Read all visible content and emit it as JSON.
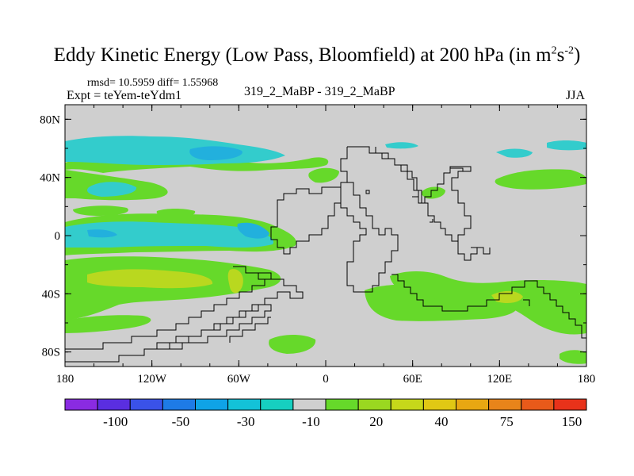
{
  "title": "Eddy Kinetic Energy (Low Pass, Bloomfield) at 200 hPa (in m",
  "title_sup1": "2",
  "title_mid": "s",
  "title_sup2": "-2",
  "title_end": ")",
  "rmsd_text": "rmsd= 10.5959 diff= 1.55968",
  "expt_text": "Expt = teYem-teYdm1",
  "center_label": "319_2_MaBP - 319_2_MaBP",
  "season": "JJA",
  "colors": {
    "background_field": "#cfcfcf",
    "green": "#66d92a",
    "yellow_green": "#b9d81f",
    "cyan": "#33cccc",
    "light_blue": "#22b0dd"
  },
  "chart_data": {
    "type": "heatmap",
    "title": "Eddy Kinetic Energy (Low Pass, Bloomfield) at 200 hPa (in m^2 s^-2)",
    "x_axis": {
      "ticks": [
        "180",
        "120W",
        "60W",
        "0",
        "60E",
        "120E",
        "180"
      ],
      "range": [
        -180,
        180
      ]
    },
    "y_axis": {
      "ticks": [
        "80N",
        "40N",
        "0",
        "40S",
        "80S"
      ],
      "range": [
        -90,
        90
      ]
    },
    "colorbar": {
      "colors": [
        "#8a2be2",
        "#5a2ee0",
        "#3a52e8",
        "#1e7be6",
        "#0fa3e6",
        "#13c2d8",
        "#16cfc0",
        "#cfcfcf",
        "#66d92a",
        "#9ad820",
        "#c6d81a",
        "#e0c814",
        "#e8a712",
        "#e8841a",
        "#e85a1a",
        "#e8321a"
      ],
      "labels": [
        "-100",
        "-50",
        "-30",
        "-10",
        "20",
        "40",
        "75",
        "150"
      ],
      "label_boundary_index": [
        2,
        4,
        6,
        8,
        10,
        12,
        14,
        16
      ]
    },
    "regions": [
      {
        "name": "nh-band-1",
        "level": "cyan",
        "lon": [
          -150,
          -90
        ],
        "lat": [
          43,
          58
        ]
      },
      {
        "name": "nh-band-2",
        "level": "light_blue",
        "lon": [
          -135,
          -110
        ],
        "lat": [
          47,
          54
        ]
      },
      {
        "name": "subtropics-south-pacific",
        "level": "cyan",
        "lon": [
          -170,
          -40
        ],
        "lat": [
          -10,
          10
        ]
      },
      {
        "name": "south-band-green",
        "level": "green",
        "lon": [
          -180,
          -40
        ],
        "lat": [
          -62,
          -22
        ]
      },
      {
        "name": "south-band-yellow",
        "level": "yellow_green",
        "lon": [
          -170,
          -80
        ],
        "lat": [
          -42,
          -30
        ]
      },
      {
        "name": "south-indian",
        "level": "green",
        "lon": [
          20,
          180
        ],
        "lat": [
          -62,
          -28
        ]
      }
    ]
  }
}
